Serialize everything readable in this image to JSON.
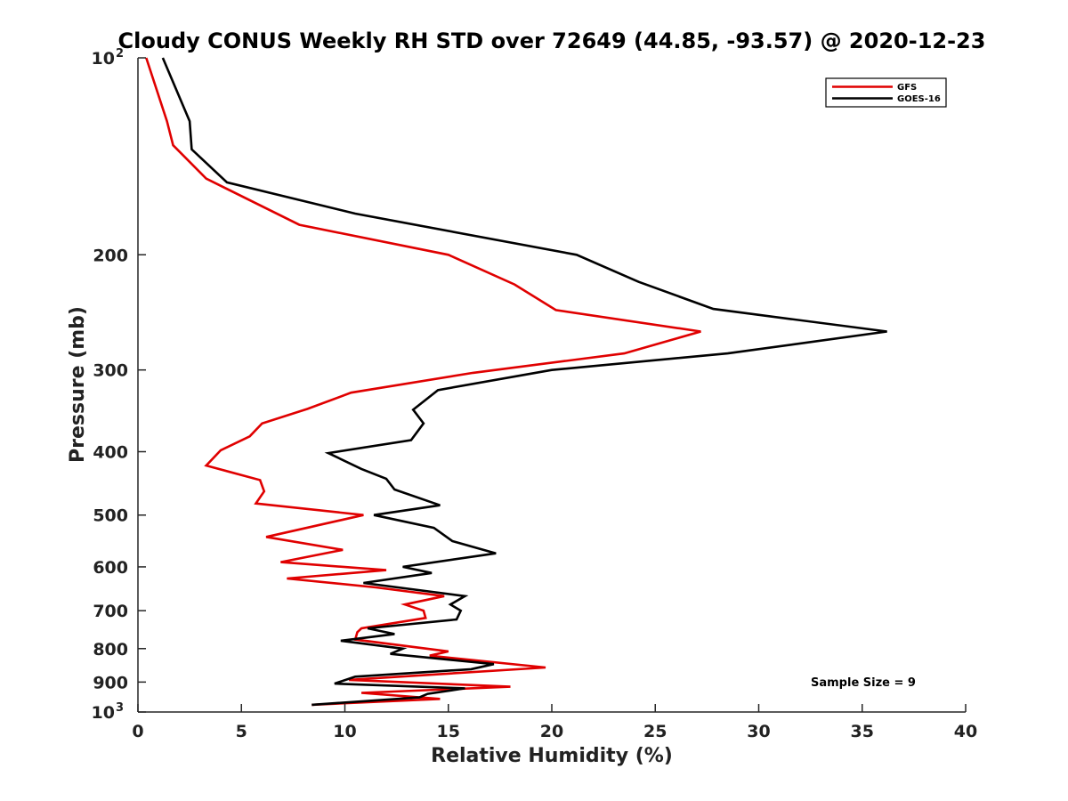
{
  "chart_data": {
    "type": "line",
    "title": "Cloudy CONUS Weekly RH STD over 72649 (44.85, -93.57) @ 2020-12-23",
    "xlabel": "Relative Humidity (%)",
    "ylabel": "Pressure (mb)",
    "xlim": [
      0,
      40
    ],
    "ylim": [
      100,
      1000
    ],
    "y_scale": "log",
    "y_reversed": true,
    "x_ticks": [
      "0",
      "5",
      "10",
      "15",
      "20",
      "25",
      "30",
      "35",
      "40"
    ],
    "y_ticks": [
      {
        "value": 100,
        "base": "10",
        "exp": "2"
      },
      {
        "value": 200,
        "label": "200"
      },
      {
        "value": 300,
        "label": "300"
      },
      {
        "value": 400,
        "label": "400"
      },
      {
        "value": 500,
        "label": "500"
      },
      {
        "value": 600,
        "label": "600"
      },
      {
        "value": 700,
        "label": "700"
      },
      {
        "value": 800,
        "label": "800"
      },
      {
        "value": 900,
        "label": "900"
      },
      {
        "value": 1000,
        "base": "10",
        "exp": "3"
      }
    ],
    "grid": false,
    "legend_position": "top-right",
    "annotation": "Sample Size = 9",
    "series": [
      {
        "name": "GFS",
        "color": "#e00000",
        "points": [
          [
            0.4,
            100
          ],
          [
            1.4,
            125
          ],
          [
            1.7,
            136
          ],
          [
            3.3,
            153
          ],
          [
            7.8,
            180
          ],
          [
            15.0,
            200
          ],
          [
            18.2,
            222
          ],
          [
            20.2,
            243
          ],
          [
            27.2,
            262
          ],
          [
            23.5,
            283
          ],
          [
            16.2,
            303
          ],
          [
            10.3,
            325
          ],
          [
            8.2,
            344
          ],
          [
            6.0,
            362
          ],
          [
            5.4,
            379
          ],
          [
            4.0,
            398
          ],
          [
            3.3,
            420
          ],
          [
            5.9,
            442
          ],
          [
            6.1,
            460
          ],
          [
            5.7,
            480
          ],
          [
            10.9,
            500
          ],
          [
            6.2,
            540
          ],
          [
            9.9,
            565
          ],
          [
            6.9,
            590
          ],
          [
            12.0,
            607
          ],
          [
            7.2,
            625
          ],
          [
            11.5,
            645
          ],
          [
            14.8,
            665
          ],
          [
            12.9,
            685
          ],
          [
            13.8,
            700
          ],
          [
            13.9,
            718
          ],
          [
            10.8,
            745
          ],
          [
            10.6,
            755
          ],
          [
            10.5,
            775
          ],
          [
            15.0,
            808
          ],
          [
            14.1,
            820
          ],
          [
            19.7,
            855
          ],
          [
            10.2,
            893
          ],
          [
            18.0,
            915
          ],
          [
            10.8,
            935
          ],
          [
            14.6,
            955
          ],
          [
            8.4,
            975
          ]
        ]
      },
      {
        "name": "GOES-16",
        "color": "#000000",
        "points": [
          [
            1.2,
            100
          ],
          [
            2.5,
            125
          ],
          [
            2.6,
            138
          ],
          [
            4.3,
            155
          ],
          [
            10.5,
            173
          ],
          [
            21.2,
            200
          ],
          [
            24.2,
            220
          ],
          [
            27.8,
            242
          ],
          [
            36.2,
            262
          ],
          [
            28.5,
            283
          ],
          [
            20.0,
            300
          ],
          [
            14.5,
            322
          ],
          [
            13.3,
            345
          ],
          [
            13.8,
            362
          ],
          [
            13.2,
            384
          ],
          [
            9.2,
            402
          ],
          [
            10.8,
            425
          ],
          [
            12.0,
            440
          ],
          [
            12.4,
            457
          ],
          [
            14.6,
            483
          ],
          [
            11.4,
            500
          ],
          [
            14.3,
            523
          ],
          [
            15.2,
            548
          ],
          [
            17.3,
            572
          ],
          [
            12.8,
            600
          ],
          [
            14.2,
            613
          ],
          [
            10.9,
            635
          ],
          [
            15.8,
            665
          ],
          [
            15.1,
            685
          ],
          [
            15.6,
            700
          ],
          [
            15.4,
            722
          ],
          [
            11.1,
            745
          ],
          [
            12.4,
            760
          ],
          [
            9.8,
            778
          ],
          [
            12.8,
            800
          ],
          [
            12.2,
            815
          ],
          [
            17.2,
            845
          ],
          [
            16.1,
            860
          ],
          [
            10.5,
            883
          ],
          [
            9.5,
            905
          ],
          [
            15.8,
            920
          ],
          [
            14.0,
            938
          ],
          [
            13.6,
            950
          ],
          [
            8.4,
            975
          ]
        ]
      }
    ]
  }
}
